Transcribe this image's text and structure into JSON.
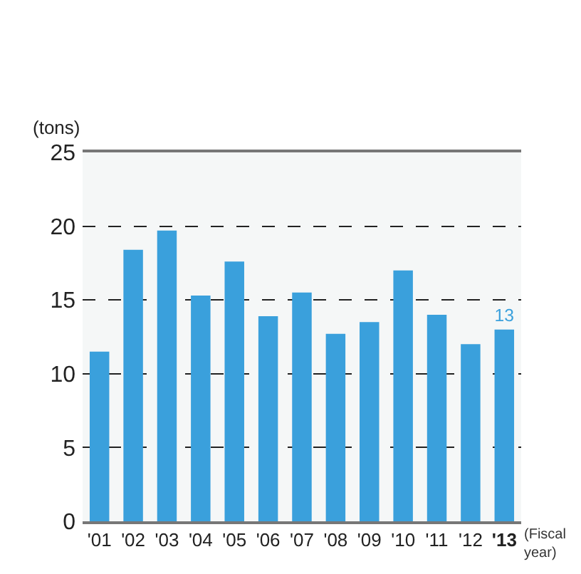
{
  "chart_data": {
    "type": "bar",
    "ylabel": "(tons)",
    "xlabel": "(Fiscal year)",
    "categories": [
      "'01",
      "'02",
      "'03",
      "'04",
      "'05",
      "'06",
      "'07",
      "'08",
      "'09",
      "'10",
      "'11",
      "'12",
      "'13"
    ],
    "values": [
      11.5,
      18.4,
      19.7,
      15.3,
      17.6,
      13.9,
      15.5,
      12.7,
      13.5,
      17.0,
      14.0,
      12.0,
      13
    ],
    "value_labels": [
      null,
      null,
      null,
      null,
      null,
      null,
      null,
      null,
      null,
      null,
      null,
      null,
      "13"
    ],
    "color": "#3aa0dc",
    "ylim": [
      0,
      25
    ],
    "yticks": [
      0,
      5,
      10,
      15,
      20,
      25
    ],
    "grid": "y"
  }
}
